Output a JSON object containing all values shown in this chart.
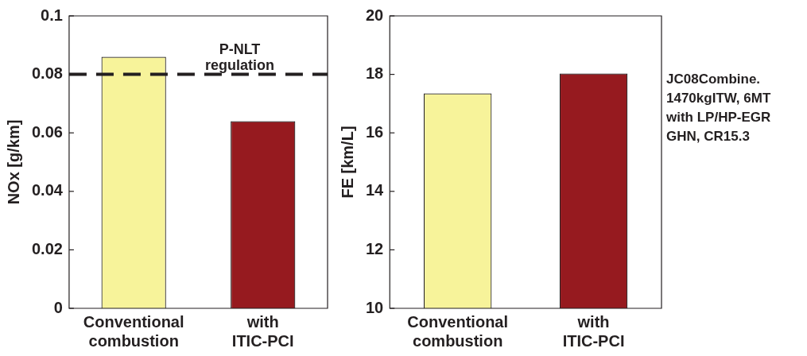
{
  "chart_data": [
    {
      "type": "bar",
      "ylabel": "NOx [g/km]",
      "categories": [
        "Conventional combustion",
        "with ITIC-PCI"
      ],
      "colors": [
        "#f7f39a",
        "#961a1f"
      ],
      "values": [
        0.086,
        0.064
      ],
      "ylim": [
        0,
        0.1
      ],
      "yticks": [
        0,
        0.02,
        0.04,
        0.06,
        0.08,
        0.1
      ],
      "grid": false,
      "legend": false,
      "ref_lines": [
        {
          "axis": "y",
          "value": 0.08,
          "label": "P-NLT regulation",
          "color": "#231f20",
          "line_style": "dashed"
        }
      ]
    },
    {
      "type": "bar",
      "ylabel": "FE [km/L]",
      "categories": [
        "Conventional combustion",
        "with ITIC-PCI"
      ],
      "colors": [
        "#f7f39a",
        "#961a1f"
      ],
      "values": [
        17.35,
        18.03
      ],
      "ylim": [
        10,
        20
      ],
      "yticks": [
        10,
        12,
        14,
        16,
        18,
        20
      ],
      "grid": false,
      "legend": false,
      "annotations": [
        "JC08Combine.\n1470kgITW, 6MT\nwith LP/HP-EGR\nGHN, CR15.3"
      ]
    }
  ]
}
